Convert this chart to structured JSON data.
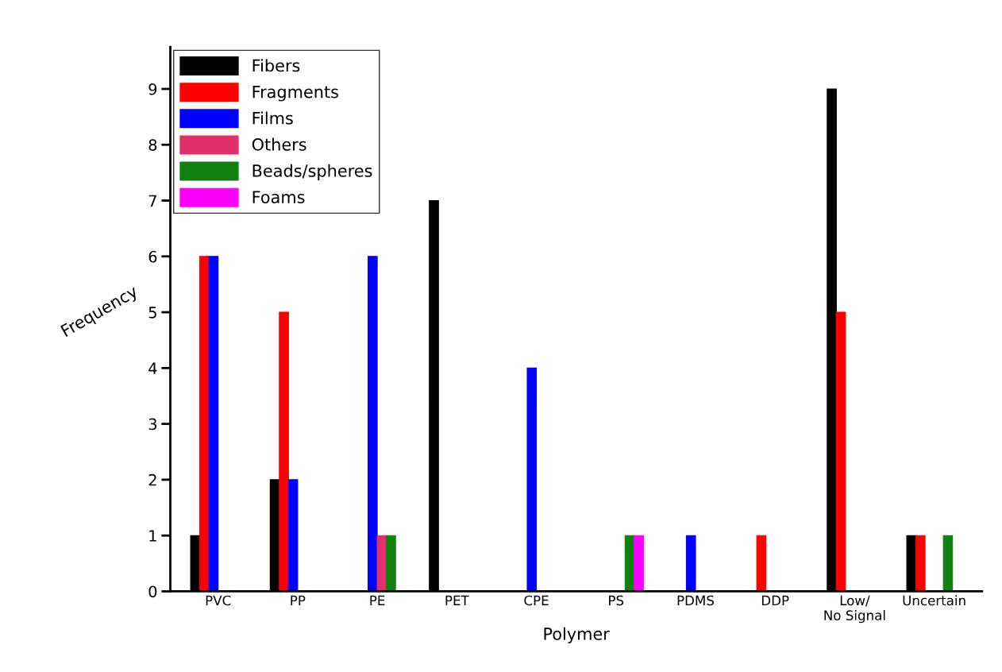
{
  "chart_data": {
    "type": "bar",
    "xlabel": "Polymer",
    "ylabel": "Frequency",
    "categories": [
      "PVC",
      "PP",
      "PE",
      "PET",
      "CPE",
      "PS",
      "PDMS",
      "DDP",
      "Low/\nNo Signal",
      "Uncertain"
    ],
    "series": [
      {
        "name": "Fibers",
        "color": "#000000",
        "values": [
          1,
          2,
          0,
          7,
          0,
          0,
          0,
          0,
          9,
          1
        ]
      },
      {
        "name": "Fragments",
        "color": "#ff0000",
        "values": [
          6,
          5,
          0,
          0,
          0,
          0,
          0,
          1,
          5,
          1
        ]
      },
      {
        "name": "Films",
        "color": "#0000ff",
        "values": [
          6,
          2,
          6,
          0,
          4,
          0,
          1,
          0,
          0,
          0
        ]
      },
      {
        "name": "Others",
        "color": "#e0306a",
        "values": [
          0,
          0,
          1,
          0,
          0,
          0,
          0,
          0,
          0,
          0
        ]
      },
      {
        "name": "Beads/spheres",
        "color": "#108010",
        "values": [
          0,
          0,
          1,
          0,
          0,
          1,
          0,
          0,
          0,
          1
        ]
      },
      {
        "name": "Foams",
        "color": "#ff00ff",
        "values": [
          0,
          0,
          0,
          0,
          0,
          1,
          0,
          0,
          0,
          0
        ]
      }
    ],
    "ylim": [
      0,
      9.75
    ],
    "yticks": [
      0,
      1,
      2,
      3,
      4,
      5,
      6,
      7,
      8,
      9
    ],
    "legend": "top left",
    "grid": false
  }
}
